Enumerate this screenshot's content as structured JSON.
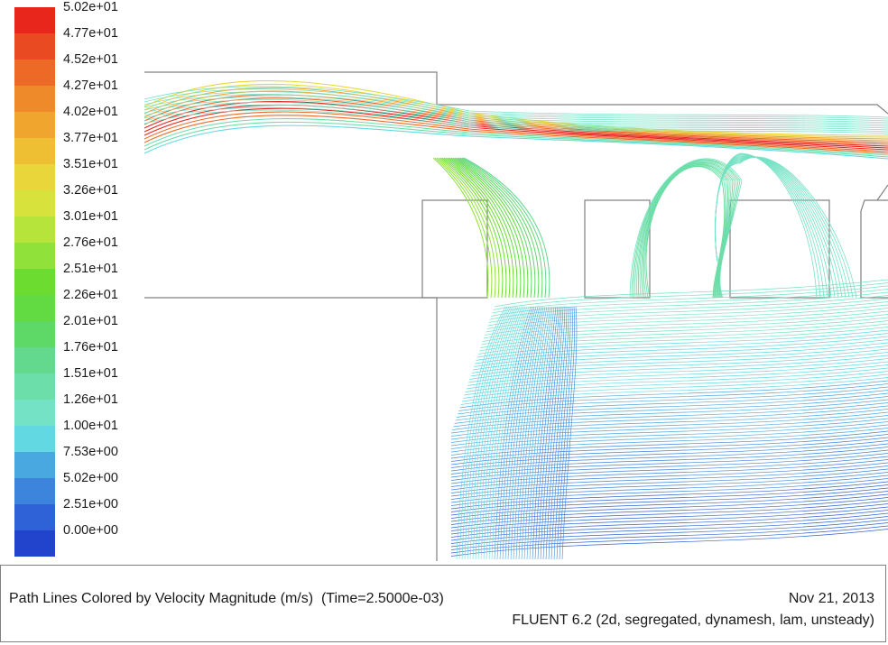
{
  "chart_data": {
    "type": "heatmap",
    "title": "Path Lines Colored by Velocity Magnitude (m/s)",
    "time_label": "(Time=2.5000e-03)",
    "date": "Nov 21, 2013",
    "solver_info": "FLUENT 6.2 (2d, segregated, dynamesh, lam, unsteady)",
    "colorbar": {
      "min": 0.0,
      "max": 50.2,
      "labels": [
        "5.02e+01",
        "4.77e+01",
        "4.52e+01",
        "4.27e+01",
        "4.02e+01",
        "3.77e+01",
        "3.51e+01",
        "3.26e+01",
        "3.01e+01",
        "2.76e+01",
        "2.51e+01",
        "2.26e+01",
        "2.01e+01",
        "1.76e+01",
        "1.51e+01",
        "1.26e+01",
        "1.00e+01",
        "7.53e+00",
        "5.02e+00",
        "2.51e+00",
        "0.00e+00"
      ],
      "colors": [
        "#e8261c",
        "#ea4a22",
        "#ec6a26",
        "#ee8a2a",
        "#f0a62e",
        "#efbf33",
        "#e9d63b",
        "#d7e33c",
        "#b6e43a",
        "#90e23a",
        "#6cdc30",
        "#62da42",
        "#5ed866",
        "#62d98c",
        "#6cdeaa",
        "#74e2c4",
        "#62d9e2",
        "#4aa8e0",
        "#3c84dc",
        "#2e62d6",
        "#2244cc"
      ]
    }
  }
}
